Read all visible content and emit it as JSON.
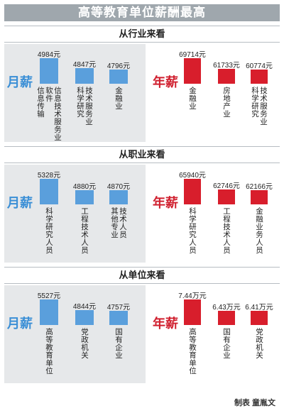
{
  "title": "高等教育单位薪酬最高",
  "credit": "制表 童胤文",
  "labels": {
    "month": "月薪",
    "year": "年薪"
  },
  "chart_data": [
    {
      "type": "bar",
      "section_title": "从行业来看",
      "monthly": {
        "categories": [
          "信息传输 软件 信息技术服务业",
          "科学研究 技术服务业",
          "金融业"
        ],
        "cat_lines": [
          [
            "信息传输",
            "软件",
            "信息技术服务业"
          ],
          [
            "科学研究",
            "技术服务业"
          ],
          [
            "金融业"
          ]
        ],
        "values": [
          4984,
          4847,
          4796
        ],
        "value_labels": [
          "4984元",
          "4847元",
          "4796元"
        ]
      },
      "annual": {
        "categories": [
          "金融业",
          "房地产业",
          "科学研究 技术服务业"
        ],
        "cat_lines": [
          [
            "金融业"
          ],
          [
            "房地产业"
          ],
          [
            "科学研究",
            "技术服务业"
          ]
        ],
        "values": [
          69714,
          61733,
          60774
        ],
        "value_labels": [
          "69714元",
          "61733元",
          "60774元"
        ]
      }
    },
    {
      "type": "bar",
      "section_title": "从职业来看",
      "monthly": {
        "categories": [
          "科学研究人员",
          "工程技术人员",
          "其他专业 技术人员"
        ],
        "cat_lines": [
          [
            "科学研究人员"
          ],
          [
            "工程技术人员"
          ],
          [
            "其他专业",
            "技术人员"
          ]
        ],
        "values": [
          5328,
          4880,
          4870
        ],
        "value_labels": [
          "5328元",
          "4880元",
          "4870元"
        ]
      },
      "annual": {
        "categories": [
          "科学研究人员",
          "工程技术人员",
          "金融业务人员"
        ],
        "cat_lines": [
          [
            "科学研究人员"
          ],
          [
            "工程技术人员"
          ],
          [
            "金融业务人员"
          ]
        ],
        "values": [
          65940,
          62746,
          62166
        ],
        "value_labels": [
          "65940元",
          "62746元",
          "62166元"
        ]
      }
    },
    {
      "type": "bar",
      "section_title": "从单位来看",
      "monthly": {
        "categories": [
          "高等教育单位",
          "党政机关",
          "国有企业"
        ],
        "cat_lines": [
          [
            "高等教育单位"
          ],
          [
            "党政机关"
          ],
          [
            "国有企业"
          ]
        ],
        "values": [
          5527,
          4844,
          4757
        ],
        "value_labels": [
          "5527元",
          "4844元",
          "4757元"
        ]
      },
      "annual": {
        "categories": [
          "高等教育单位",
          "国有企业",
          "党政机关"
        ],
        "cat_lines": [
          [
            "高等教育单位"
          ],
          [
            "国有企业"
          ],
          [
            "党政机关"
          ]
        ],
        "values": [
          74400,
          64300,
          64100
        ],
        "value_labels": [
          "7.44万元",
          "6.43万元",
          "6.41万元"
        ]
      }
    }
  ]
}
